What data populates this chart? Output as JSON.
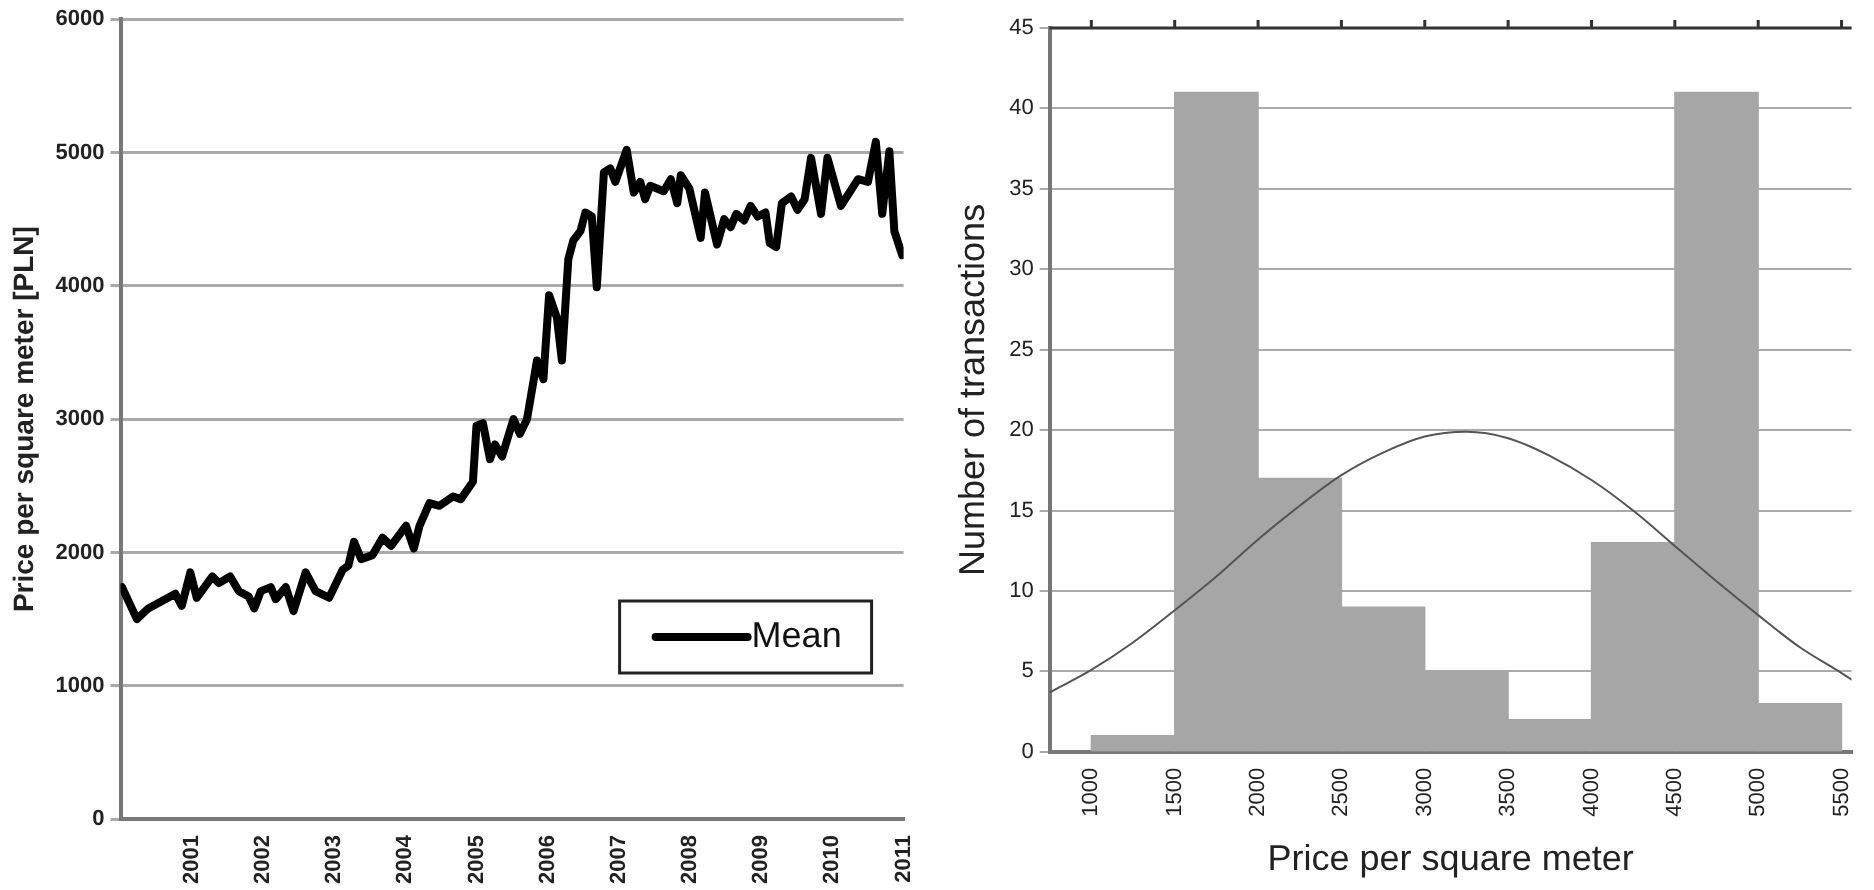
{
  "chart_data": [
    {
      "type": "line",
      "ylabel": "Price per square meter [PLN]",
      "xlim": [
        2000,
        2011
      ],
      "xticks": [
        2001,
        2002,
        2003,
        2004,
        2005,
        2006,
        2007,
        2008,
        2009,
        2010,
        2011
      ],
      "ylim": [
        0,
        6000
      ],
      "yticks": [
        0,
        1000,
        2000,
        3000,
        4000,
        5000,
        6000
      ],
      "grid": "y",
      "legend": "bottom right",
      "marker": "none",
      "line_style": "solid",
      "series": [
        {
          "name": "Mean",
          "color": "#000000",
          "x": [
            2000.02,
            2000.23,
            2000.39,
            2000.77,
            2000.86,
            2000.98,
            2001.07,
            2001.29,
            2001.38,
            2001.54,
            2001.66,
            2001.8,
            2001.88,
            2001.97,
            2002.11,
            2002.18,
            2002.32,
            2002.43,
            2002.6,
            2002.74,
            2002.93,
            2003.12,
            2003.2,
            2003.28,
            2003.38,
            2003.54,
            2003.68,
            2003.8,
            2004.01,
            2004.12,
            2004.2,
            2004.34,
            2004.48,
            2004.67,
            2004.78,
            2004.95,
            2005.0,
            2005.09,
            2005.19,
            2005.26,
            2005.36,
            2005.52,
            2005.61,
            2005.71,
            2005.85,
            2005.94,
            2006.02,
            2006.13,
            2006.2,
            2006.29,
            2006.36,
            2006.46,
            2006.53,
            2006.62,
            2006.69,
            2006.79,
            2006.88,
            2006.95,
            2007.11,
            2007.21,
            2007.3,
            2007.37,
            2007.44,
            2007.63,
            2007.73,
            2007.82,
            2007.87,
            2007.99,
            2008.15,
            2008.21,
            2008.38,
            2008.48,
            2008.57,
            2008.65,
            2008.76,
            2008.85,
            2008.95,
            2009.06,
            2009.12,
            2009.21,
            2009.29,
            2009.42,
            2009.51,
            2009.61,
            2009.7,
            2009.84,
            2009.93,
            2010.12,
            2010.36,
            2010.5,
            2010.61,
            2010.7,
            2010.8,
            2010.87,
            2010.98
          ],
          "values": [
            1740,
            1500,
            1580,
            1690,
            1600,
            1850,
            1660,
            1820,
            1770,
            1820,
            1710,
            1670,
            1580,
            1710,
            1740,
            1650,
            1740,
            1560,
            1850,
            1710,
            1660,
            1870,
            1900,
            2080,
            1950,
            1980,
            2110,
            2050,
            2200,
            2030,
            2200,
            2370,
            2350,
            2420,
            2400,
            2530,
            2950,
            2970,
            2700,
            2810,
            2720,
            3000,
            2890,
            3000,
            3440,
            3300,
            3930,
            3760,
            3440,
            4200,
            4340,
            4410,
            4550,
            4520,
            3990,
            4850,
            4880,
            4780,
            5020,
            4700,
            4780,
            4650,
            4750,
            4710,
            4800,
            4620,
            4830,
            4730,
            4360,
            4700,
            4310,
            4500,
            4440,
            4540,
            4490,
            4600,
            4520,
            4550,
            4320,
            4290,
            4620,
            4670,
            4570,
            4650,
            4960,
            4540,
            4960,
            4600,
            4800,
            4780,
            5080,
            4540,
            5010,
            4410,
            4230
          ]
        }
      ]
    },
    {
      "type": "histogram",
      "xlabel": "Price per square meter",
      "ylabel": "Number of transactions",
      "xlim": [
        750,
        5560
      ],
      "xticks": [
        1000,
        1500,
        2000,
        2500,
        3000,
        3500,
        4000,
        4500,
        5000,
        5500
      ],
      "ylim": [
        0,
        45
      ],
      "yticks": [
        0,
        5,
        10,
        15,
        20,
        25,
        30,
        35,
        40,
        45
      ],
      "grid": "y",
      "legend": false,
      "series": [
        {
          "type": "histogram",
          "color": "#a6a6a6",
          "bins": [
            1000,
            1500,
            2000,
            2500,
            3000,
            3500,
            4000,
            4500,
            5000,
            5500
          ],
          "values": [
            1,
            41,
            17,
            9,
            5,
            2,
            13,
            41,
            3
          ]
        },
        {
          "type": "line",
          "color": "#555555",
          "x": [
            750,
            1000,
            1250,
            1500,
            1750,
            2000,
            2250,
            2500,
            2750,
            3000,
            3250,
            3500,
            3750,
            4000,
            4250,
            4500,
            4750,
            5000,
            5250,
            5500,
            5560
          ],
          "values": [
            3.7,
            5.1,
            6.8,
            8.8,
            10.9,
            13.2,
            15.3,
            17.2,
            18.6,
            19.6,
            19.9,
            19.5,
            18.4,
            16.9,
            15.0,
            12.8,
            10.6,
            8.5,
            6.5,
            4.9,
            4.5
          ]
        }
      ]
    }
  ]
}
